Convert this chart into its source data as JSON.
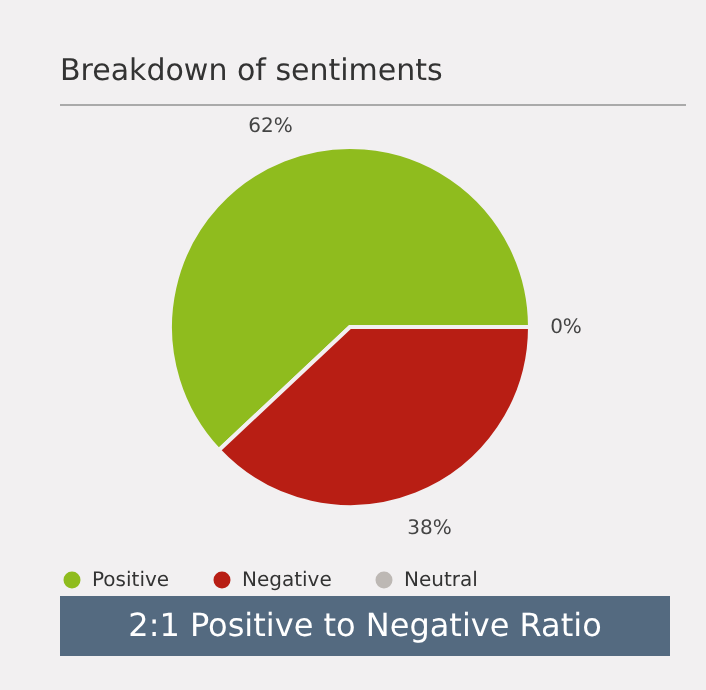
{
  "chart_data": {
    "type": "pie",
    "title": "Breakdown of sentiments",
    "categories": [
      "Positive",
      "Negative",
      "Neutral"
    ],
    "values": [
      62,
      38,
      0
    ],
    "colors": [
      "#8fbc1e",
      "#b81e14",
      "#bdb8b4"
    ],
    "value_labels": [
      "62%",
      "38%",
      "0%"
    ],
    "legend": "bottom",
    "annotations": [
      "2:1 Positive to Negative Ratio"
    ]
  }
}
